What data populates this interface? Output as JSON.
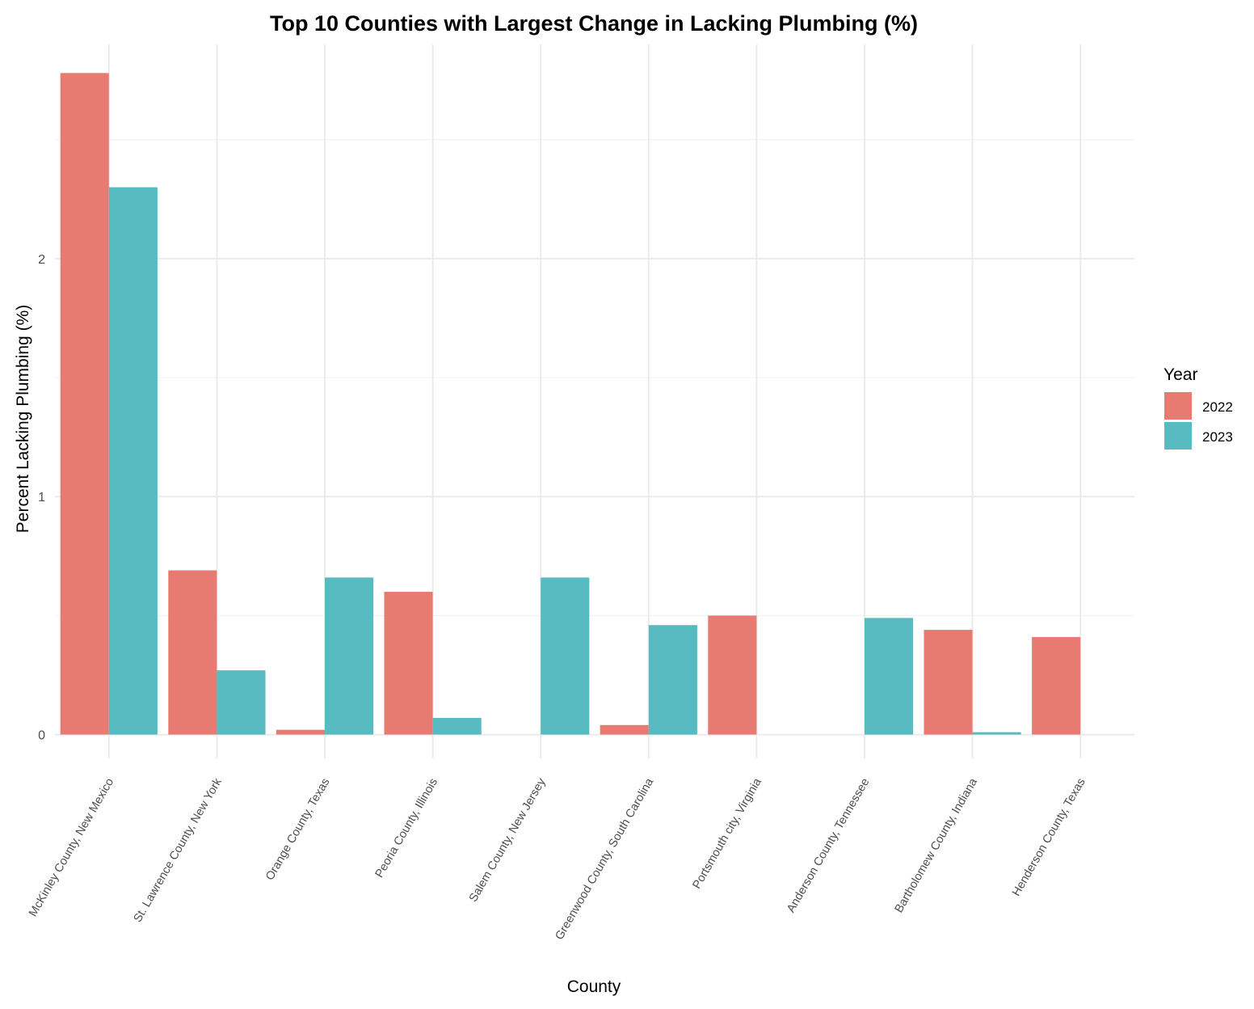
{
  "chart_data": {
    "type": "bar",
    "title": "Top 10 Counties with Largest Change in Lacking Plumbing (%)",
    "xlabel": "County",
    "ylabel": "Percent Lacking Plumbing (%)",
    "ylim": [
      -0.1,
      2.9
    ],
    "yticks": [
      "0",
      "1",
      "2"
    ],
    "ytick_values": [
      0,
      1,
      2
    ],
    "grid": true,
    "legend": {
      "title": "Year",
      "position": "right"
    },
    "categories": [
      "McKinley County, New Mexico",
      "St. Lawrence County, New York",
      "Orange County, Texas",
      "Peoria County, Illinois",
      "Salem County, New Jersey",
      "Greenwood County, South Carolina",
      "Portsmouth city, Virginia",
      "Anderson County, Tennessee",
      "Bartholomew County, Indiana",
      "Henderson County, Texas"
    ],
    "series": [
      {
        "name": "2022",
        "color": "#e77b72",
        "values": [
          2.78,
          0.69,
          0.02,
          0.6,
          null,
          0.04,
          0.5,
          null,
          0.44,
          0.41
        ]
      },
      {
        "name": "2023",
        "color": "#58bbc1",
        "values": [
          2.3,
          0.27,
          0.66,
          0.07,
          0.66,
          0.46,
          null,
          0.49,
          0.01,
          null
        ]
      }
    ]
  }
}
